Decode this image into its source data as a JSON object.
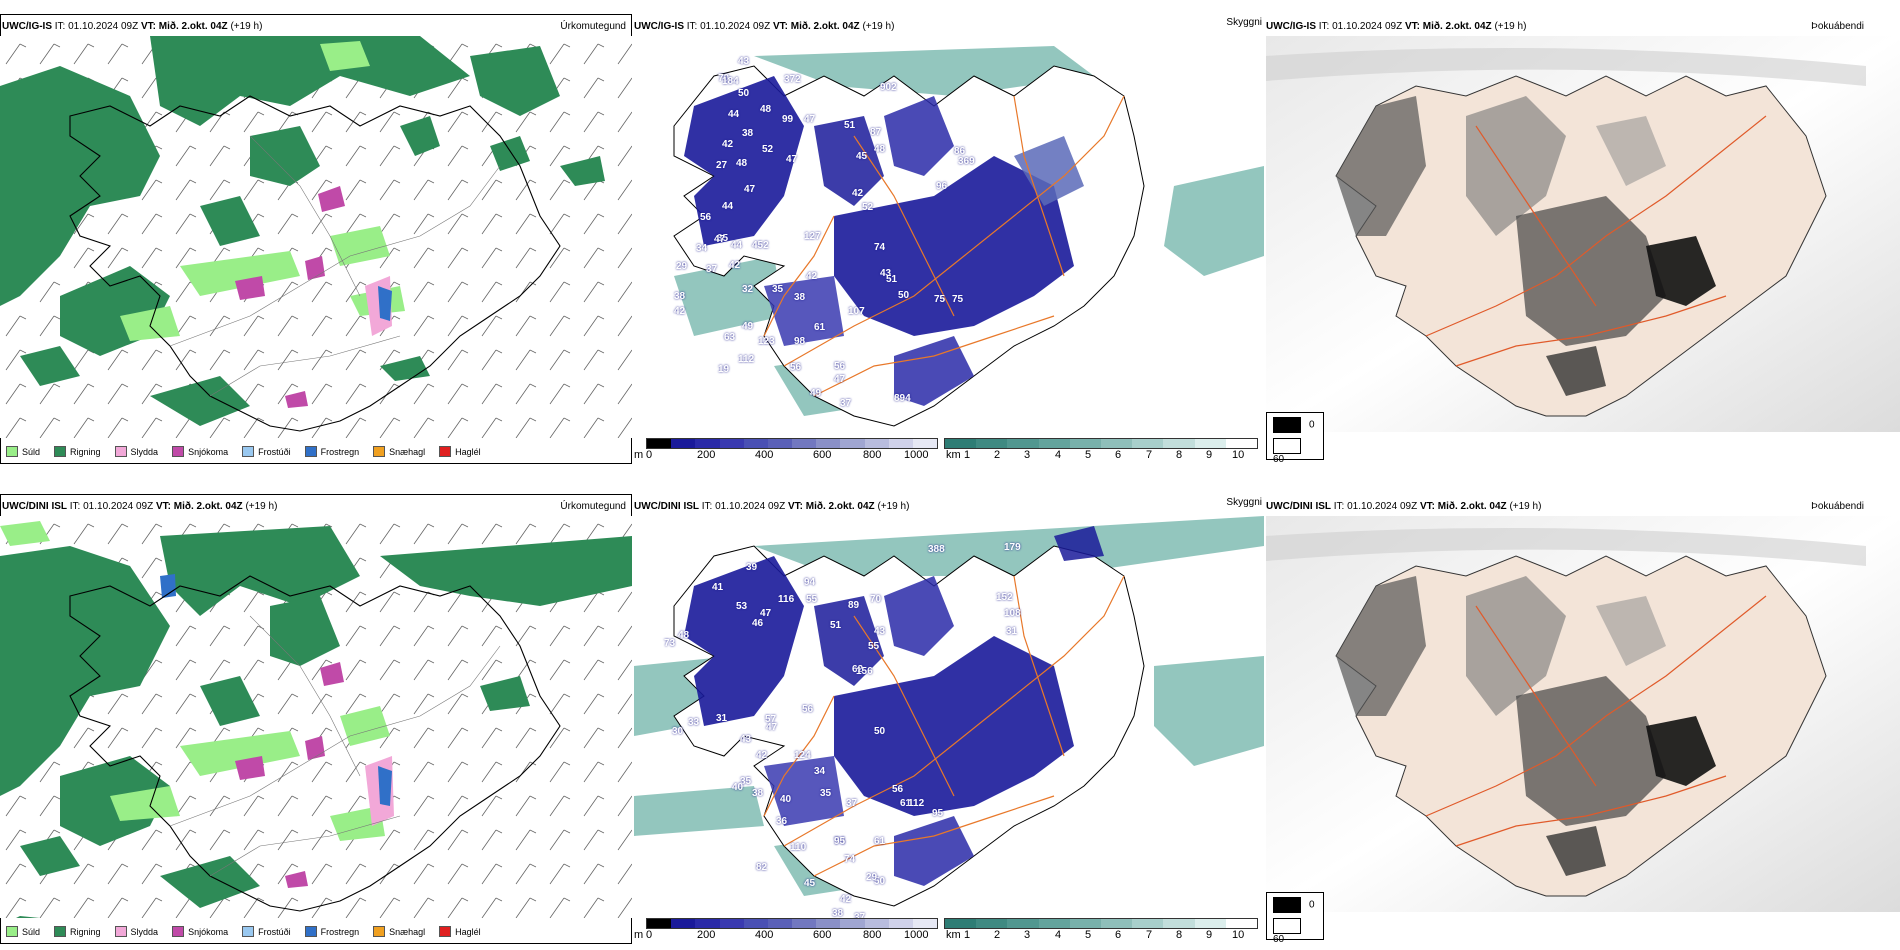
{
  "rows": [
    {
      "precip": {
        "model": "UWC/IG-IS",
        "it": "IT: 01.10.2024 09Z",
        "vt": "VT: Mið. 2.okt. 04Z",
        "lead": "(+19 h)",
        "product": "Úrkomutegund"
      },
      "cloud": {
        "model": "UWC/IG-IS",
        "it": "IT: 01.10.2024 09Z",
        "vt": "VT: Mið. 2.okt. 04Z",
        "lead": "(+19 h)",
        "product": "Skyggni",
        "labels": [
          "43",
          "70",
          "50",
          "44",
          "99",
          "47",
          "38",
          "52",
          "42",
          "51",
          "27",
          "48",
          "47",
          "44",
          "87",
          "48",
          "45",
          "42",
          "52",
          "56",
          "35",
          "34",
          "47",
          "44",
          "452",
          "29",
          "37",
          "42",
          "42",
          "38",
          "127",
          "74",
          "43",
          "51",
          "32",
          "35",
          "38",
          "42",
          "50",
          "75",
          "75",
          "49",
          "61",
          "107",
          "63",
          "98",
          "123",
          "19",
          "112",
          "56",
          "56",
          "47",
          "49",
          "37",
          "894",
          "184",
          "372",
          "902",
          "86",
          "369",
          "96",
          "48",
          "47"
        ]
      },
      "fog": {
        "model": "UWC/IG-IS",
        "it": "IT: 01.10.2024 09Z",
        "vt": "VT: Mið. 2.okt. 04Z",
        "lead": "(+19 h)",
        "product": "Þokuábendi"
      }
    },
    {
      "precip": {
        "model": "UWC/DINI ISL",
        "it": "IT: 01.10.2024 09Z",
        "vt": "VT: Mið. 2.okt. 04Z",
        "lead": "(+19 h)",
        "product": "Úrkomutegund"
      },
      "cloud": {
        "model": "UWC/DINI ISL",
        "it": "IT: 01.10.2024 09Z",
        "vt": "VT: Mið. 2.okt. 04Z",
        "lead": "(+19 h)",
        "product": "Skyggni",
        "labels": [
          "39",
          "94",
          "41",
          "116",
          "55",
          "53",
          "47",
          "46",
          "73",
          "48",
          "89",
          "51",
          "70",
          "43",
          "55",
          "62",
          "156",
          "57",
          "31",
          "33",
          "30",
          "42",
          "124",
          "47",
          "43",
          "56",
          "34",
          "35",
          "40",
          "50",
          "38",
          "35",
          "40",
          "37",
          "36",
          "56",
          "61",
          "112",
          "95",
          "82",
          "110",
          "74",
          "61",
          "74",
          "45",
          "50",
          "42",
          "38",
          "37",
          "29",
          "95",
          "179",
          "388",
          "152",
          "108",
          "31"
        ]
      },
      "fog": {
        "model": "UWC/DINI ISL",
        "it": "IT: 01.10.2024 09Z",
        "vt": "VT: Mið. 2.okt. 04Z",
        "lead": "(+19 h)",
        "product": "Þokuábendi"
      }
    }
  ],
  "precip_legend": [
    {
      "label": "Súld",
      "color": "#99ee88"
    },
    {
      "label": "Rigning",
      "color": "#2e8b57"
    },
    {
      "label": "Slydda",
      "color": "#f2a8d8"
    },
    {
      "label": "Snjókoma",
      "color": "#c04aa8"
    },
    {
      "label": "Frostúði",
      "color": "#99c8f0"
    },
    {
      "label": "Frostregn",
      "color": "#3070c8"
    },
    {
      "label": "Snæhagl",
      "color": "#f0a020"
    },
    {
      "label": "Haglél",
      "color": "#e02020"
    }
  ],
  "cloud_base_scale": {
    "unit": "m",
    "ticks": [
      "0",
      "200",
      "400",
      "600",
      "800",
      "1000"
    ]
  },
  "visibility_scale": {
    "unit": "km",
    "ticks": [
      "1",
      "2",
      "3",
      "4",
      "5",
      "6",
      "7",
      "8",
      "9",
      "10"
    ]
  },
  "fog_legend": [
    {
      "label": "0",
      "color": "#000000"
    },
    {
      "label": "60",
      "color": "#ffffff"
    }
  ],
  "colors": {
    "rain": "#2e8b57",
    "drizzle": "#99ee88",
    "cloud_dark": "#1a1a9a",
    "cloud_mid": "#5a6ab8",
    "vis_teal": "#5fa8a0",
    "roads": "#e8782a",
    "fog_land": "#f3e4d8"
  }
}
